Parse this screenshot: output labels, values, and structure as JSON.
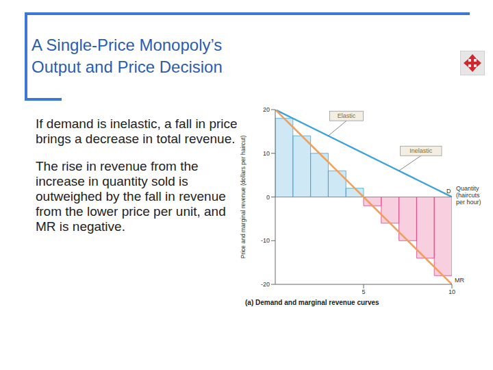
{
  "slide": {
    "title": "A Single-Price Monopoly’s Output and Price Decision",
    "paragraphs": [
      "If demand is inelastic, a fall in price brings a decrease in total revenue.",
      "The rise in revenue from the increase in quantity sold is outweighed by the fall in revenue from the lower price per unit, and MR is negative."
    ]
  },
  "chart_data": {
    "type": "line",
    "caption": "(a) Demand and marginal revenue curves",
    "x_label": "Quantity (haircuts per hour)",
    "y_label": "Price and marginal revenue (dollars per haircut)",
    "annotations": [
      "Elastic",
      "Inelastic"
    ],
    "x": [
      0,
      1,
      2,
      3,
      4,
      5,
      6,
      7,
      8,
      9,
      10
    ],
    "series": [
      {
        "name": "D",
        "color": "#3aa3d8",
        "values": [
          20,
          18,
          16,
          14,
          12,
          10,
          8,
          6,
          4,
          2,
          0
        ]
      },
      {
        "name": "MR",
        "color": "#f0a05a",
        "values": [
          20,
          16,
          12,
          8,
          4,
          0,
          -4,
          -8,
          -12,
          -16,
          -20
        ]
      }
    ],
    "revenue_bars": {
      "type": "bar",
      "bins": [
        0,
        1,
        2,
        3,
        4,
        5,
        6,
        7,
        8,
        9,
        10
      ],
      "values": [
        18,
        14,
        10,
        6,
        2,
        -2,
        -6,
        -10,
        -14,
        -18
      ],
      "colors": [
        "#3aa3d8",
        "#3aa3d8",
        "#3aa3d8",
        "#3aa3d8",
        "#3aa3d8",
        "#e0407f",
        "#e0407f",
        "#e0407f",
        "#e0407f",
        "#e0407f"
      ]
    },
    "xlim": [
      0,
      10
    ],
    "xticks": [
      5,
      10
    ],
    "ylim": [
      -20,
      20
    ],
    "yticks": [
      -20,
      -10,
      0,
      10,
      20
    ],
    "grid": false
  }
}
